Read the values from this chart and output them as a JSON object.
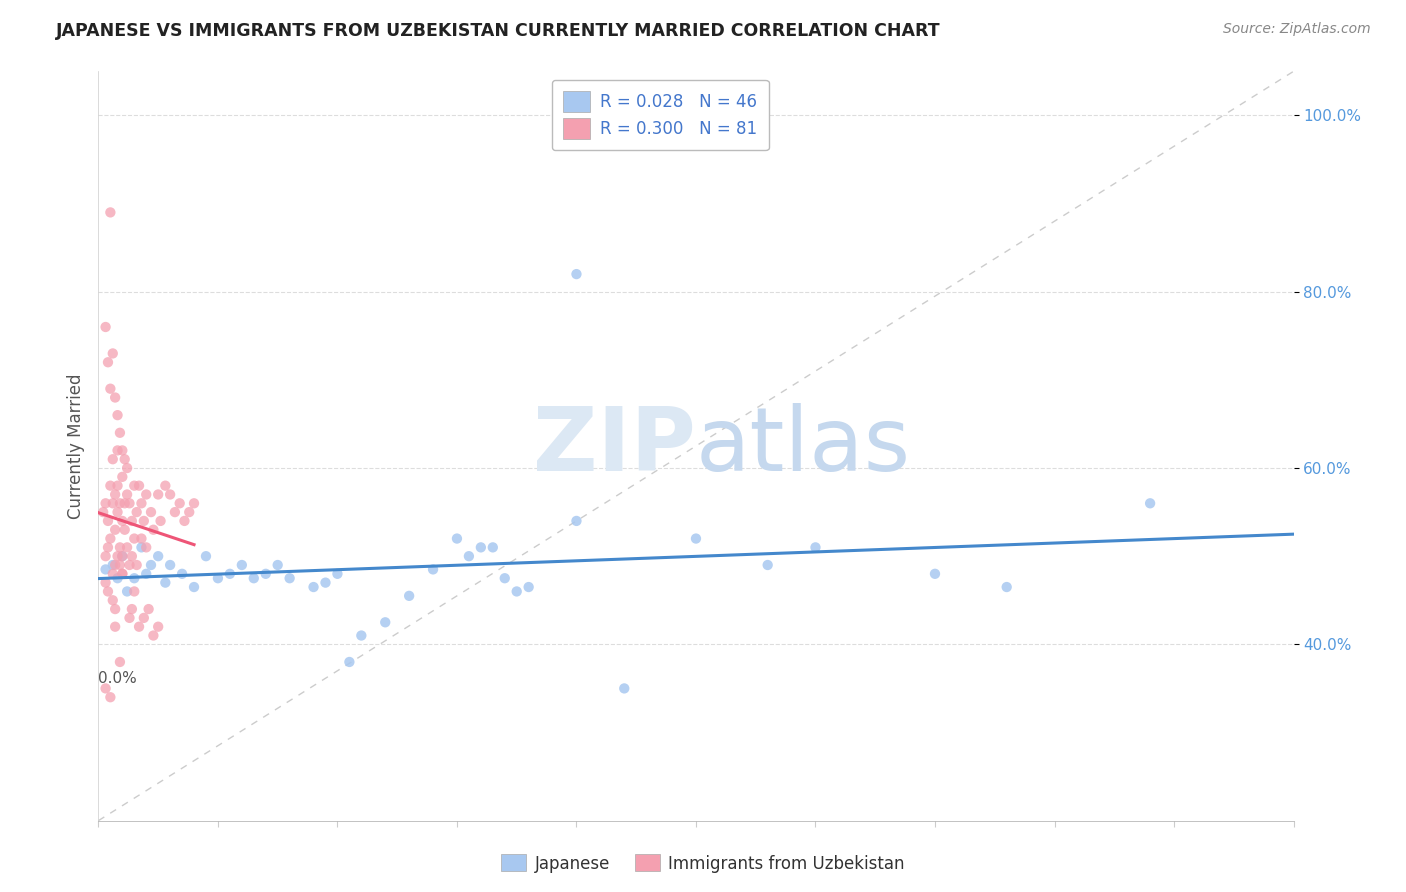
{
  "title": "JAPANESE VS IMMIGRANTS FROM UZBEKISTAN CURRENTLY MARRIED CORRELATION CHART",
  "source_text": "Source: ZipAtlas.com",
  "ylabel": "Currently Married",
  "xmin": 0.0,
  "xmax": 0.5,
  "ymin": 0.2,
  "ymax": 1.05,
  "yticks": [
    0.4,
    0.6,
    0.8,
    1.0
  ],
  "ytick_labels": [
    "40.0%",
    "60.0%",
    "80.0%",
    "100.0%"
  ],
  "color_japanese": "#a8c8f0",
  "color_uzbekistan": "#f4a0b0",
  "color_line_japanese": "#4488cc",
  "color_line_uzbekistan": "#ee5577",
  "color_diag": "#cccccc",
  "watermark_color": "#dce8f4",
  "background_color": "#ffffff",
  "legend_label_japanese": "Japanese",
  "legend_label_uzbekistan": "Immigrants from Uzbekistan",
  "japanese_x": [
    0.003,
    0.006,
    0.008,
    0.01,
    0.012,
    0.015,
    0.018,
    0.02,
    0.022,
    0.025,
    0.028,
    0.03,
    0.035,
    0.04,
    0.045,
    0.05,
    0.055,
    0.06,
    0.065,
    0.07,
    0.075,
    0.08,
    0.09,
    0.095,
    0.1,
    0.11,
    0.12,
    0.13,
    0.14,
    0.15,
    0.16,
    0.17,
    0.18,
    0.2,
    0.22,
    0.25,
    0.28,
    0.3,
    0.35,
    0.38,
    0.44,
    0.2,
    0.155,
    0.165,
    0.175,
    0.105
  ],
  "japanese_y": [
    0.485,
    0.49,
    0.475,
    0.5,
    0.46,
    0.475,
    0.51,
    0.48,
    0.49,
    0.5,
    0.47,
    0.49,
    0.48,
    0.465,
    0.5,
    0.475,
    0.48,
    0.49,
    0.475,
    0.48,
    0.49,
    0.475,
    0.465,
    0.47,
    0.48,
    0.41,
    0.425,
    0.455,
    0.485,
    0.52,
    0.51,
    0.475,
    0.465,
    0.82,
    0.35,
    0.52,
    0.49,
    0.51,
    0.48,
    0.465,
    0.56,
    0.54,
    0.5,
    0.51,
    0.46,
    0.38
  ],
  "uzbek_x": [
    0.002,
    0.003,
    0.003,
    0.004,
    0.004,
    0.005,
    0.005,
    0.005,
    0.006,
    0.006,
    0.006,
    0.007,
    0.007,
    0.007,
    0.008,
    0.008,
    0.008,
    0.008,
    0.009,
    0.009,
    0.009,
    0.01,
    0.01,
    0.01,
    0.01,
    0.011,
    0.011,
    0.012,
    0.012,
    0.013,
    0.013,
    0.014,
    0.014,
    0.015,
    0.015,
    0.016,
    0.016,
    0.017,
    0.018,
    0.018,
    0.019,
    0.02,
    0.02,
    0.022,
    0.023,
    0.025,
    0.026,
    0.028,
    0.03,
    0.032,
    0.034,
    0.036,
    0.038,
    0.04,
    0.003,
    0.004,
    0.005,
    0.006,
    0.007,
    0.008,
    0.009,
    0.01,
    0.011,
    0.012,
    0.013,
    0.014,
    0.015,
    0.017,
    0.019,
    0.021,
    0.023,
    0.025,
    0.003,
    0.005,
    0.007,
    0.009,
    0.003,
    0.004,
    0.006,
    0.007,
    0.01
  ],
  "uzbek_y": [
    0.55,
    0.56,
    0.5,
    0.54,
    0.51,
    0.58,
    0.52,
    0.89,
    0.56,
    0.61,
    0.48,
    0.57,
    0.53,
    0.49,
    0.58,
    0.55,
    0.5,
    0.62,
    0.56,
    0.51,
    0.49,
    0.59,
    0.54,
    0.5,
    0.48,
    0.56,
    0.53,
    0.57,
    0.51,
    0.56,
    0.49,
    0.54,
    0.5,
    0.58,
    0.52,
    0.55,
    0.49,
    0.58,
    0.56,
    0.52,
    0.54,
    0.57,
    0.51,
    0.55,
    0.53,
    0.57,
    0.54,
    0.58,
    0.57,
    0.55,
    0.56,
    0.54,
    0.55,
    0.56,
    0.76,
    0.72,
    0.69,
    0.73,
    0.68,
    0.66,
    0.64,
    0.62,
    0.61,
    0.6,
    0.43,
    0.44,
    0.46,
    0.42,
    0.43,
    0.44,
    0.41,
    0.42,
    0.35,
    0.34,
    0.42,
    0.38,
    0.47,
    0.46,
    0.45,
    0.44,
    0.48
  ]
}
